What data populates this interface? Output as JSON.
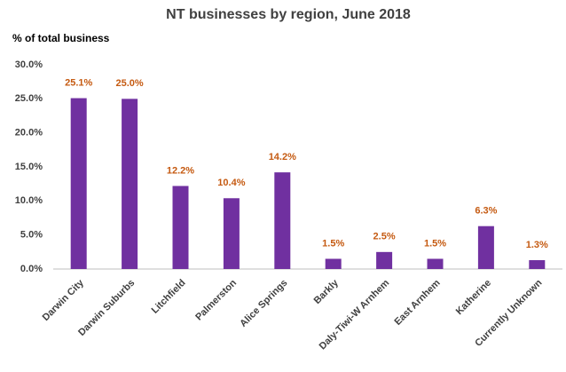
{
  "chart_data": {
    "type": "bar",
    "title": "NT businesses by region, June 2018",
    "y_label": "% of total business",
    "categories": [
      "Darwin City",
      "Darwin Suburbs",
      "Litchfield",
      "Palmerston",
      "Alice Springs",
      "Barkly",
      "Daly-Tiwi-W Arnhem",
      "East Arnhem",
      "Katherine",
      "Currently Unknown"
    ],
    "values": [
      25.1,
      25.0,
      12.2,
      10.4,
      14.2,
      1.5,
      2.5,
      1.5,
      6.3,
      1.3
    ],
    "value_labels": [
      "25.1%",
      "25.0%",
      "12.2%",
      "10.4%",
      "14.2%",
      "1.5%",
      "2.5%",
      "1.5%",
      "6.3%",
      "1.3%"
    ],
    "color": "#7030a0",
    "label_color": "#c55a11",
    "ylim": [
      0,
      30
    ],
    "yticks": [
      {
        "value": 0,
        "label": "0.0%"
      },
      {
        "value": 5,
        "label": "5.0%"
      },
      {
        "value": 10,
        "label": "10.0%"
      },
      {
        "value": 15,
        "label": "15.0%"
      },
      {
        "value": 20,
        "label": "20.0%"
      },
      {
        "value": 25,
        "label": "25.0%"
      },
      {
        "value": 30,
        "label": "30.0%"
      }
    ],
    "grid": false
  }
}
